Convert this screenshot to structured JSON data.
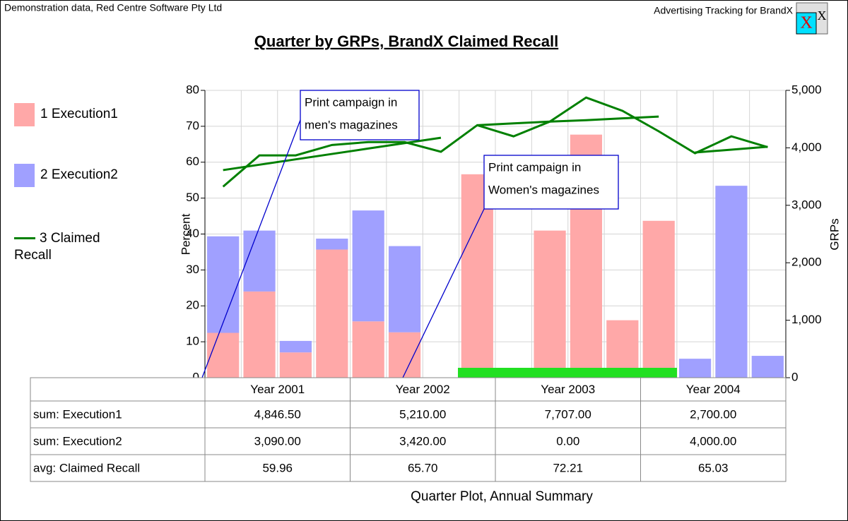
{
  "header": {
    "left": "Demonstration data, Red Centre Software Pty Ltd",
    "right": "Advertising Tracking for BrandX"
  },
  "chart_data": {
    "type": "bar",
    "title": "Quarter by GRPs, BrandX Claimed Recall",
    "footer": "Quarter Plot, Annual Summary",
    "ylabel": "Percent",
    "y2label": "GRPs",
    "categories": [
      null,
      null,
      null,
      null,
      null,
      null,
      null,
      null,
      null,
      null,
      null,
      null,
      null,
      null,
      null,
      null
    ],
    "ylim": [
      0,
      80
    ],
    "yticks": [
      0,
      10,
      20,
      30,
      40,
      50,
      60,
      70,
      80
    ],
    "y2lim": [
      0,
      5000
    ],
    "y2ticks": [
      0,
      {
        "value": 1000,
        "label": "1,000"
      },
      {
        "value": 2000,
        "label": "2,000"
      },
      {
        "value": 3000,
        "label": "3,000"
      },
      {
        "value": 4000,
        "label": "4,000"
      },
      {
        "value": 5000,
        "label": "5,000"
      }
    ],
    "grid": true,
    "legend": "left",
    "series": [
      {
        "name": "1 Execution1",
        "type": "bar",
        "axis": "y2",
        "color": "#ffa8a8",
        "values": [
          780,
          1500,
          440,
          2230,
          980,
          790,
          0,
          3540,
          0,
          2560,
          4230,
          1000,
          2730,
          0,
          0,
          0
        ]
      },
      {
        "name": "2 Execution2",
        "type": "bar",
        "axis": "y2",
        "color": "#a0a0ff",
        "values": [
          1680,
          1060,
          200,
          190,
          1930,
          1500,
          0,
          0,
          0,
          0,
          0,
          0,
          0,
          330,
          3340,
          380
        ]
      },
      {
        "name": "3 Claimed Recall",
        "type": "line",
        "color": "#008000",
        "values": [
          53.2,
          61.9,
          61.9,
          64.8,
          65.6,
          65.6,
          62.9,
          70.3,
          67.2,
          71.3,
          78.0,
          74.3,
          68.6,
          62.5,
          67.2,
          64.2
        ]
      },
      {
        "type": "line",
        "color": "#008000",
        "values": [
          57.8,
          59.3,
          60.8,
          62.3,
          63.8,
          65.3,
          66.8,
          70.3,
          70.8,
          71.3,
          71.7,
          72.2,
          72.7,
          62.7,
          63.5,
          64.3
        ],
        "breaks": [
          7,
          13
        ]
      }
    ],
    "annotations": [
      {
        "lines": [
          "Print campaign in",
          "men's magazines"
        ]
      },
      {
        "lines": [
          "Print campaign in",
          "Women's magazines"
        ]
      }
    ]
  },
  "table": {
    "columns": [
      "Year 2001",
      "Year 2002",
      "Year 2003",
      "Year 2004"
    ],
    "rows": [
      {
        "label": "sum: Execution1",
        "cells": [
          "4,846.50",
          "5,210.00",
          "7,707.00",
          "2,700.00"
        ]
      },
      {
        "label": "sum: Execution2",
        "cells": [
          "3,090.00",
          "3,420.00",
          "0.00",
          "4,000.00"
        ]
      },
      {
        "label": "avg: Claimed Recall",
        "cells": [
          "59.96",
          "65.70",
          "72.21",
          "65.03"
        ]
      }
    ]
  }
}
